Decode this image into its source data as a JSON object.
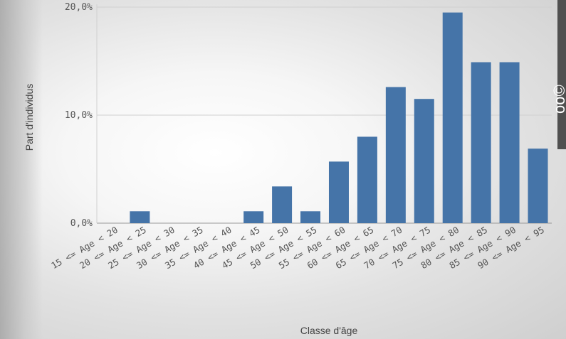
{
  "chart_data": {
    "type": "bar",
    "title": "",
    "xlabel": "Classe d'âge",
    "ylabel": "Part d'individus",
    "ylim": [
      0,
      20.5
    ],
    "yticks": [
      0,
      10,
      20
    ],
    "ytick_labels": [
      "0,0%",
      "10,0%",
      "20,0%"
    ],
    "grid": true,
    "colors": {
      "bar": "#4574A8",
      "grid": "#d0d0d0",
      "axis": "#999999"
    },
    "categories": [
      "15 <= Age < 20",
      "20 <= Age < 25",
      "25 <= Age < 30",
      "30 <= Age < 35",
      "35 <= Age < 40",
      "40 <= Age < 45",
      "45 <= Age < 50",
      "50 <= Age < 55",
      "55 <= Age < 60",
      "60 <= Age < 65",
      "65 <= Age < 70",
      "70 <= Age < 75",
      "75 <= Age < 80",
      "80 <= Age < 85",
      "85 <= Age < 90",
      "90 <= Age < 95"
    ],
    "values": [
      0,
      1.1,
      0,
      0,
      0,
      1.1,
      3.4,
      1.1,
      5.7,
      8.0,
      12.6,
      11.5,
      19.5,
      14.9,
      14.9,
      6.9
    ]
  },
  "side_label": "oo©"
}
